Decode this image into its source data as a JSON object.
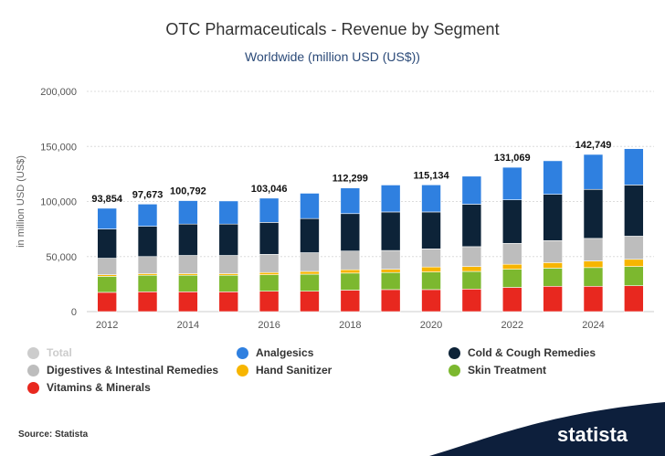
{
  "header": {
    "title": "OTC Pharmaceuticals - Revenue by Segment",
    "subtitle": "Worldwide (million USD (US$))"
  },
  "footer": {
    "source": "Source: Statista",
    "brand": "statista"
  },
  "chart_data": {
    "type": "bar",
    "stacked": true,
    "title": "OTC Pharmaceuticals - Revenue by Segment",
    "subtitle": "Worldwide (million USD (US$))",
    "xlabel": "",
    "ylabel": "in million USD (US$)",
    "ylim": [
      0,
      200000
    ],
    "yticks": [
      0,
      50000,
      100000,
      150000,
      200000
    ],
    "ytick_labels": [
      "0",
      "50,000",
      "100,000",
      "150,000",
      "200,000"
    ],
    "grid": true,
    "legend_position": "bottom",
    "categories": [
      "2012",
      "2013",
      "2014",
      "2015",
      "2016",
      "2017",
      "2018",
      "2019",
      "2020",
      "2021",
      "2022",
      "2023",
      "2024",
      "2025"
    ],
    "xtick_labels": [
      "2012",
      "2014",
      "2016",
      "2018",
      "2020",
      "2022",
      "2024"
    ],
    "total_labels": [
      {
        "x": "2012",
        "label": "93,854"
      },
      {
        "x": "2013",
        "label": "97,673"
      },
      {
        "x": "2014",
        "label": "100,792"
      },
      {
        "x": "2016",
        "label": "103,046"
      },
      {
        "x": "2018",
        "label": "112,299"
      },
      {
        "x": "2020",
        "label": "115,134"
      },
      {
        "x": "2022",
        "label": "131,069"
      },
      {
        "x": "2024",
        "label": "142,749"
      }
    ],
    "series": [
      {
        "name": "Vitamins & Minerals",
        "color": "#e8281f",
        "values": [
          17500,
          18000,
          18000,
          18000,
          18500,
          18500,
          19500,
          20000,
          20000,
          20500,
          22000,
          23000,
          23000,
          23500
        ]
      },
      {
        "name": "Skin Treatment",
        "color": "#7cb82f",
        "values": [
          14500,
          15000,
          15000,
          15000,
          15000,
          15500,
          15500,
          15500,
          16000,
          16000,
          16500,
          16500,
          17000,
          17500
        ]
      },
      {
        "name": "Hand Sanitizer",
        "color": "#f7b500",
        "values": [
          1500,
          1500,
          1500,
          1500,
          2000,
          2500,
          3000,
          3000,
          4500,
          4500,
          4500,
          5000,
          6000,
          6500
        ]
      },
      {
        "name": "Digestives & Intestinal Remedies",
        "color": "#bdbdbd",
        "values": [
          15000,
          15500,
          16500,
          16500,
          16500,
          17000,
          17000,
          17000,
          16500,
          18000,
          19000,
          20000,
          20500,
          21000
        ]
      },
      {
        "name": "Cold & Cough Remedies",
        "color": "#0d2338",
        "values": [
          26500,
          27500,
          28500,
          28500,
          29000,
          31000,
          34000,
          35000,
          33500,
          38500,
          39500,
          42000,
          44500,
          46500
        ]
      },
      {
        "name": "Analgesics",
        "color": "#2f80e0",
        "values": [
          18854,
          20173,
          21292,
          21000,
          22046,
          23000,
          23299,
          24500,
          24634,
          25500,
          29569,
          30500,
          31749,
          33000
        ]
      }
    ],
    "legend": [
      {
        "name": "Total",
        "color": "#cccccc",
        "inactive": true
      },
      {
        "name": "Analgesics",
        "color": "#2f80e0"
      },
      {
        "name": "Cold & Cough Remedies",
        "color": "#0d2338"
      },
      {
        "name": "Digestives & Intestinal Remedies",
        "color": "#bdbdbd"
      },
      {
        "name": "Hand Sanitizer",
        "color": "#f7b500"
      },
      {
        "name": "Skin Treatment",
        "color": "#7cb82f"
      },
      {
        "name": "Vitamins & Minerals",
        "color": "#e8281f"
      }
    ]
  }
}
